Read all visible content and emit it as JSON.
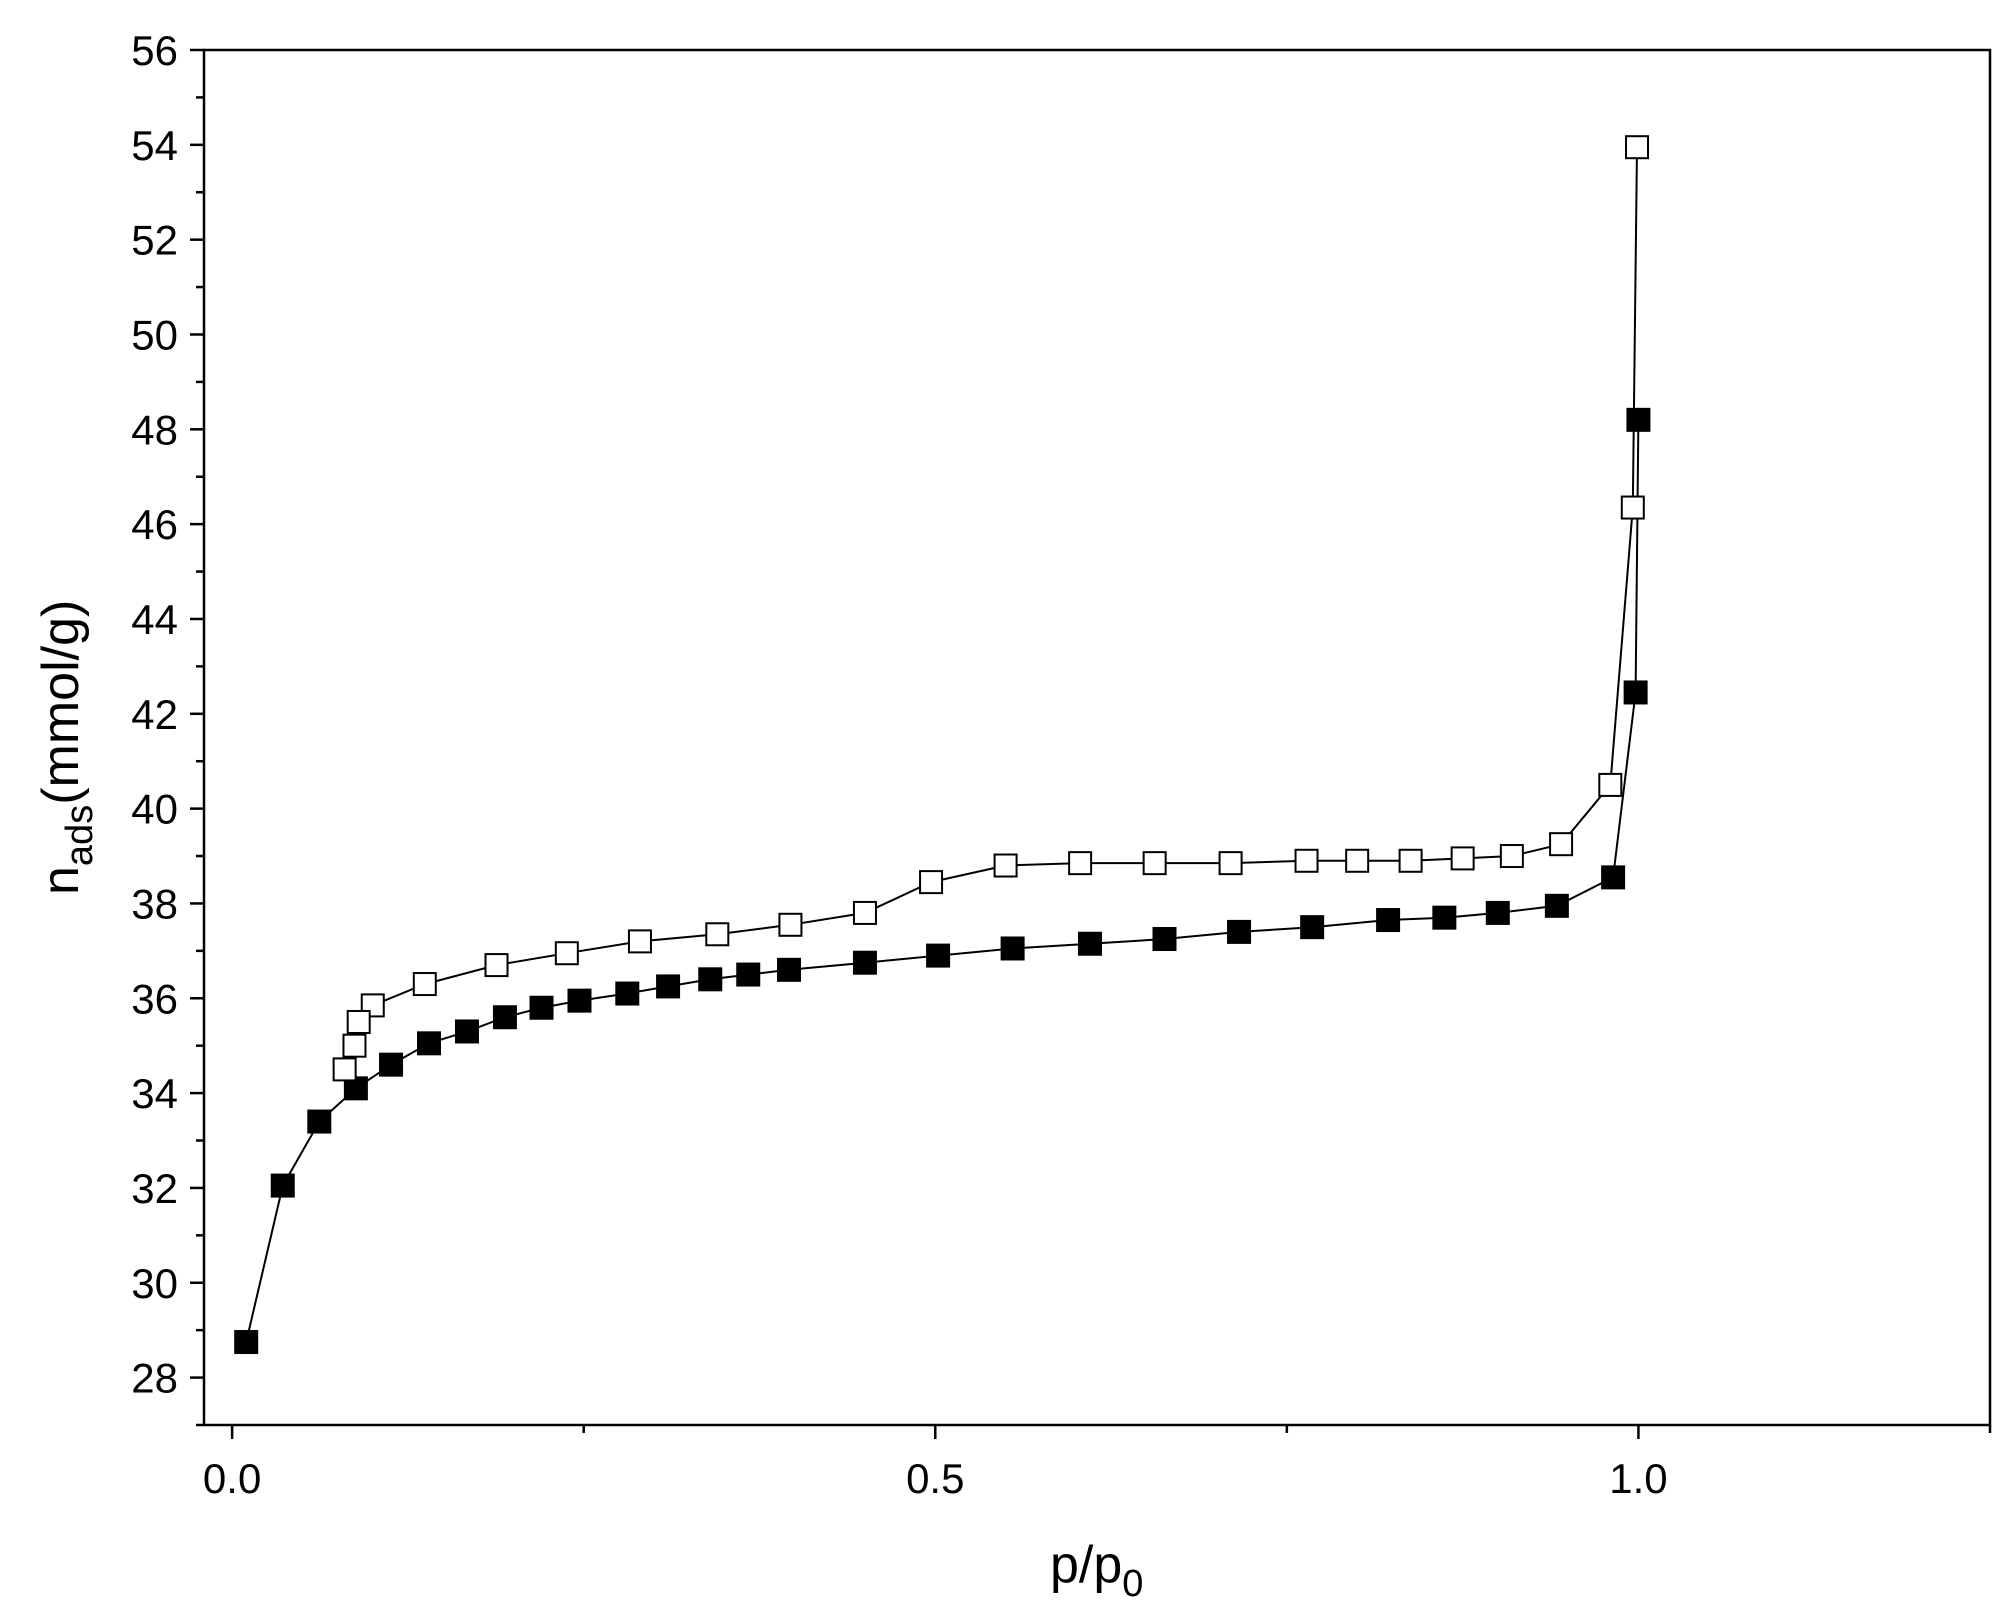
{
  "chart_data": {
    "type": "line",
    "xlabel": {
      "main": "p/p",
      "sub": "0"
    },
    "ylabel": {
      "main": "n",
      "sub": "ads",
      "rest": "(mmol/g)"
    },
    "xlim": [
      -0.02,
      1.25
    ],
    "ylim": [
      27,
      56
    ],
    "x_ticks": [
      {
        "value": 0.0,
        "label": "0.0"
      },
      {
        "value": 0.5,
        "label": "0.5"
      },
      {
        "value": 1.0,
        "label": "1.0"
      }
    ],
    "x_minor_ticks": [
      0.25,
      0.75,
      1.25
    ],
    "y_ticks": [
      {
        "value": 28,
        "label": "28"
      },
      {
        "value": 30,
        "label": "30"
      },
      {
        "value": 32,
        "label": "32"
      },
      {
        "value": 34,
        "label": "34"
      },
      {
        "value": 36,
        "label": "36"
      },
      {
        "value": 38,
        "label": "38"
      },
      {
        "value": 40,
        "label": "40"
      },
      {
        "value": 42,
        "label": "42"
      },
      {
        "value": 44,
        "label": "44"
      },
      {
        "value": 46,
        "label": "46"
      },
      {
        "value": 48,
        "label": "48"
      },
      {
        "value": 50,
        "label": "50"
      },
      {
        "value": 52,
        "label": "52"
      },
      {
        "value": 54,
        "label": "54"
      },
      {
        "value": 56,
        "label": "56"
      }
    ],
    "y_minor_step": 1,
    "grid": false,
    "series": [
      {
        "marker": "filled-square",
        "color": "#000000",
        "x": [
          0.01,
          0.036,
          0.062,
          0.088,
          0.113,
          0.14,
          0.167,
          0.194,
          0.22,
          0.247,
          0.281,
          0.31,
          0.34,
          0.367,
          0.396,
          0.45,
          0.502,
          0.555,
          0.61,
          0.663,
          0.716,
          0.768,
          0.822,
          0.862,
          0.9,
          0.942,
          0.982,
          0.998,
          1.0
        ],
        "y": [
          28.75,
          32.05,
          33.4,
          34.1,
          34.6,
          35.05,
          35.3,
          35.6,
          35.8,
          35.95,
          36.1,
          36.25,
          36.4,
          36.5,
          36.6,
          36.75,
          36.9,
          37.05,
          37.15,
          37.25,
          37.4,
          37.5,
          37.65,
          37.7,
          37.8,
          37.95,
          38.55,
          42.45,
          48.2
        ]
      },
      {
        "marker": "open-square",
        "color": "#000000",
        "x": [
          0.999,
          0.996,
          0.98,
          0.945,
          0.91,
          0.875,
          0.838,
          0.8,
          0.764,
          0.71,
          0.656,
          0.603,
          0.55,
          0.497,
          0.45,
          0.397,
          0.345,
          0.29,
          0.238,
          0.188,
          0.137,
          0.1,
          0.09,
          0.087,
          0.08
        ],
        "y": [
          53.95,
          46.35,
          40.5,
          39.25,
          39.0,
          38.95,
          38.9,
          38.9,
          38.9,
          38.85,
          38.85,
          38.85,
          38.8,
          38.45,
          37.8,
          37.55,
          37.35,
          37.2,
          36.95,
          36.7,
          36.3,
          35.85,
          35.5,
          35.0,
          34.5
        ]
      }
    ]
  }
}
